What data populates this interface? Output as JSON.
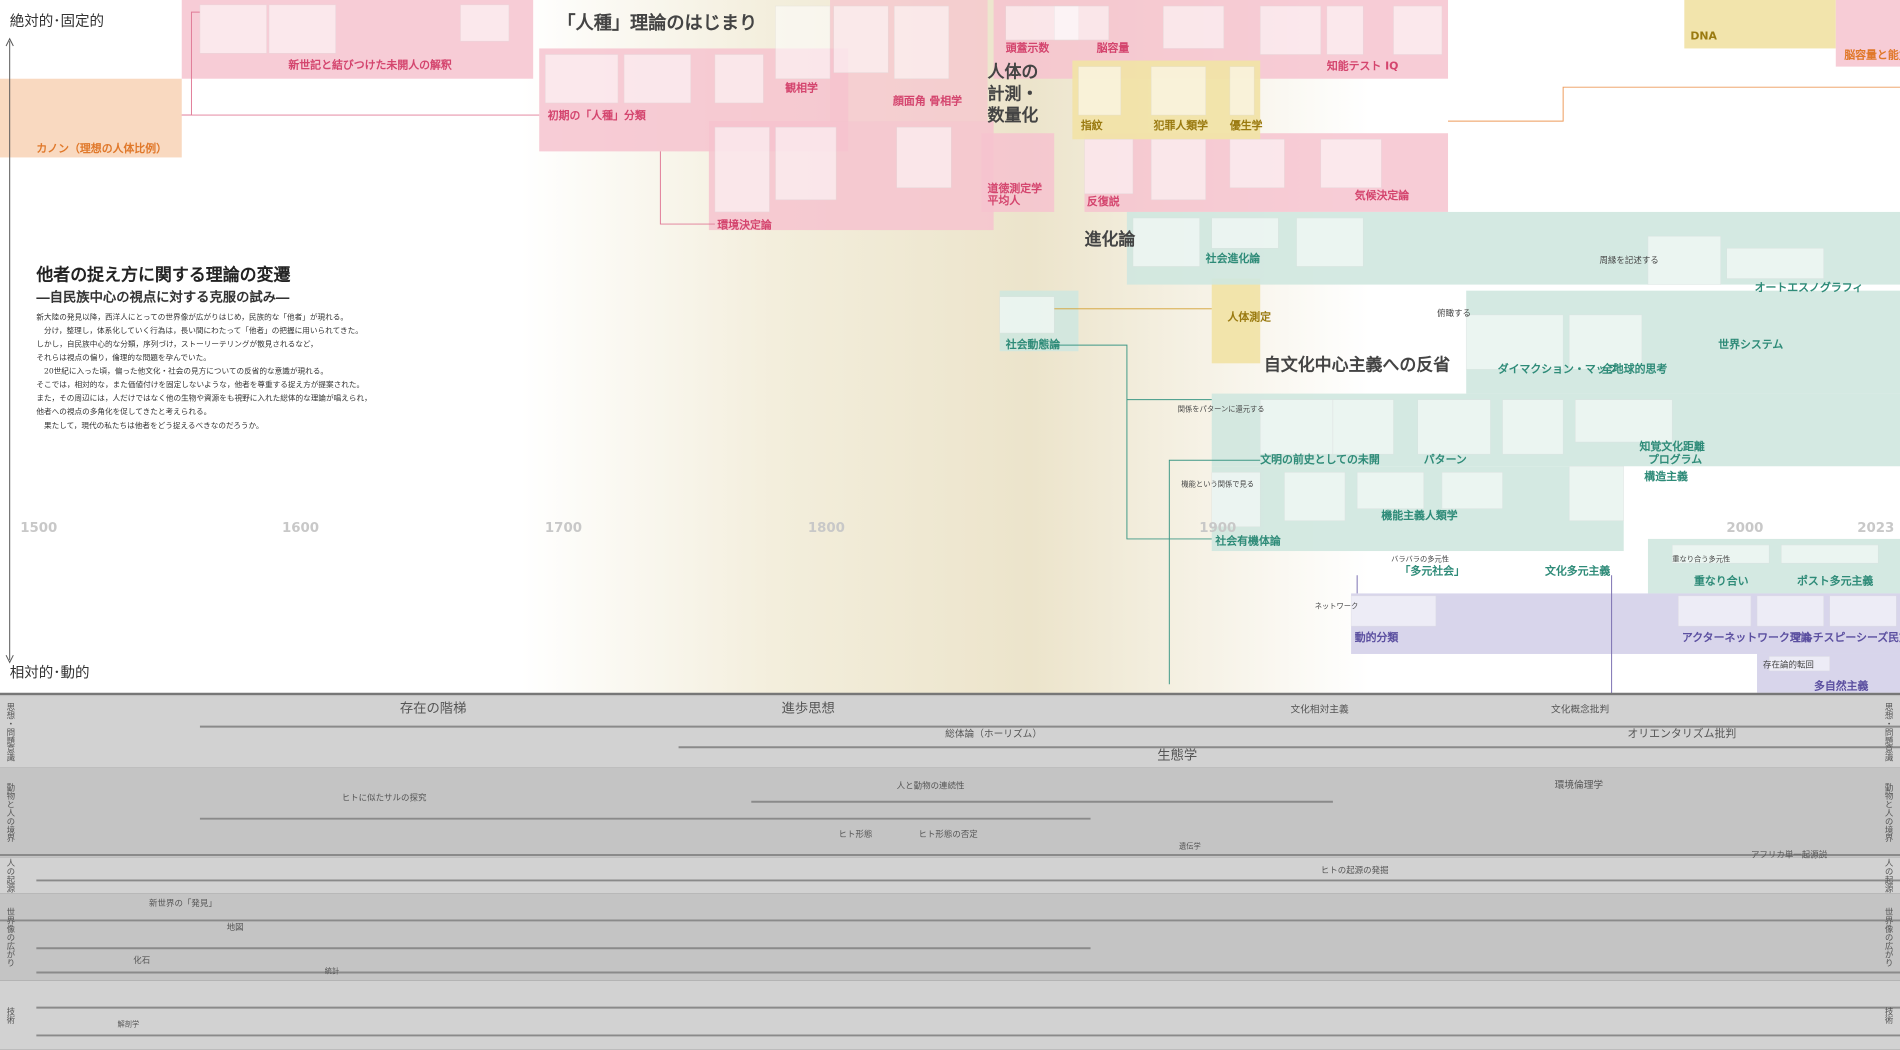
{
  "axis": {
    "top": "絶対的･固定的",
    "bottom": "相対的･動的"
  },
  "header": {
    "title": "他者の捉え方に関する理論の変遷",
    "subtitle": "―自民族中心の視点に対する克服の試み―"
  },
  "intro": [
    "新大陸の発見以降，西洋人にとっての世界像が広がりはじめ，民族的な「他者」が現れる。",
    "　分け，整理し，体系化していく行為は，長い間にわたって「他者」の把握に用いられてきた。",
    "しかし，自民族中心的な分類，序列づけ，ストーリーテリングが散見されるなど，",
    "それらは視点の偏り，倫理的な問題を孕んでいた。",
    "　20世紀に入った頃，偏った他文化・社会の見方についての反省的な意識が現れる。",
    "そこでは，相対的な，また価値付けを固定しないような，他者を尊重する捉え方が提案された。",
    "また，その周辺には，人だけではなく他の生物や資源をも視野に入れた総体的な理論が唱えられ，",
    "他者への視点の多角化を促してきたと考えられる。",
    "　果たして，現代の私たちは他者をどう捉えるべきなのだろうか。"
  ],
  "years": [
    "1500",
    "1600",
    "1700",
    "1800",
    "1900",
    "2000",
    "2023"
  ],
  "themes": [
    "「人種」理論のはじまり",
    "カノン（理想の人体比例）",
    "新世記と結びつけた未開人の解釈",
    "初期の「人種」分類",
    "観相学",
    "人体の",
    "計測・",
    "数量化",
    "顔面角",
    "骨相学",
    "頭蓋示数",
    "脳容量",
    "知能テスト IQ",
    "DNA",
    "脳容量と能力",
    "指紋",
    "犯罪人類学",
    "優生学",
    "道徳測定学",
    "平均人",
    "反復説",
    "環境決定論",
    "気候決定論",
    "進化論",
    "社会進化論",
    "人体測定",
    "社会動態論",
    "自文化中心主義への反省",
    "周縁を記述する",
    "オートエスノグラフィ",
    "俯瞰する",
    "ダイマクション・マップ",
    "全地球的思考",
    "世界システム",
    "関係をパターンに還元する",
    "文明の前史としての未開",
    "パターン",
    "知覚文化距離",
    "プログラム",
    "構造主義",
    "機能という関係で見る",
    "機能主義人類学",
    "社会有機体論",
    "バラバラの多元性",
    "「多元社会」",
    "文化多元主義",
    "重なり合う多元性",
    "重なり合い",
    "ポスト多元主義",
    "ネットワーク",
    "動的分類",
    "アクターネットワーク理論",
    "マルチスピーシーズ民族誌",
    "存在論的転回",
    "多自然主義"
  ],
  "rows": [
    "思想・問題意識",
    "動物と人の境界",
    "人の起源",
    "世界像の広がり",
    "技術"
  ],
  "lower": [
    "存在の階梯",
    "進歩思想",
    "文化相対主義",
    "文化概念批判",
    "総体論（ホーリズム）",
    "オリエンタリズム批判",
    "生態学",
    "環境倫理学",
    "ヒトに似たサルの探究",
    "人と動物の連続性",
    "ヒト形態",
    "ヒト形態の否定",
    "遺伝学",
    "ヒトの起源の発掘",
    "アフリカ単一起源説",
    "新世界の「発見」",
    "地図",
    "化石",
    "統計",
    "解剖学"
  ]
}
